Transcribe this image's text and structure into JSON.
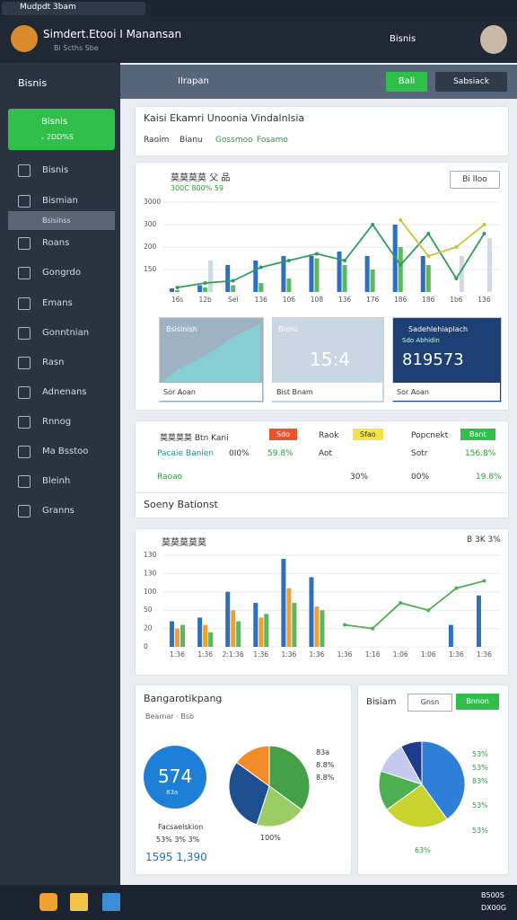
{
  "window": {
    "tab": "Mudpdt 3bam"
  },
  "header": {
    "title": "Simdert.Etooi I Manansan",
    "subtitle": "Bi Scths Sbe",
    "menu": "Bisnis"
  },
  "sidebar": {
    "menu": "Bisnis",
    "active": {
      "label": "Bisnis",
      "sub": "ᵥ 2DD%S"
    },
    "subitem": "Bsisinss",
    "items": [
      "Bisnis",
      "Bismian",
      "Roans",
      "Gongrdo",
      "Emans",
      "Gonntnian",
      "Rasn",
      "Adnenans",
      "Rnnog",
      "Ma Bsstoo",
      "Bleinh",
      "Granns"
    ]
  },
  "toolbar": {
    "title": "Ilrapan",
    "primary": "Bali",
    "secondary": "Sabsiack"
  },
  "filter_card": {
    "title": "Kaisi Ekamri Unoonia Vindalnlsia",
    "filters": [
      "Raoim",
      "Bianu",
      "Gossmoo",
      "Fosamo"
    ]
  },
  "overview": {
    "title": "莫莫莫莫 父 品",
    "subtitle": "300C 800% 59",
    "button": "Bi lloo",
    "tiles": [
      {
        "title": "Bsisinish",
        "footer": "Sor Aoan"
      },
      {
        "title": "Bisnu",
        "value": "15:4",
        "footer": "Bist Bnam"
      },
      {
        "title": "Sadehlehiaplach",
        "sub": "Sdo Abhidin",
        "value": "819573",
        "footer": "Sor Aoan"
      }
    ]
  },
  "legend_card": {
    "row1": [
      "莫莫莫莫 Btn Kani",
      "Sdo",
      "Raok",
      "Sfao",
      "Popcnekt",
      "Bant"
    ],
    "row2": [
      "Pacaie Banien",
      "0I0%",
      "59.8%",
      "Aot",
      "Sotr",
      "156.8%"
    ],
    "row3": [
      "Raoao",
      "30%",
      "00%",
      "19.8%"
    ],
    "footer": "Soeny Bationst"
  },
  "reports_card": {
    "title": "莫莫莫莫莫",
    "stat": "B 3K 3%"
  },
  "summary_card": {
    "title": "Bangarotikpang",
    "subtitle": "Bearnar · Bsb",
    "big": "574",
    "big_sub": "83a",
    "labels": [
      "83a",
      "8.8%",
      "8.8%"
    ],
    "caption": "Facsaelskion",
    "percents": "53% 3% 3%",
    "pie_note": "100%",
    "foot": "1595 1,390"
  },
  "split_card": {
    "title": "Bisiam",
    "buttons": [
      "Gnsn",
      "Bnnon"
    ],
    "labels": [
      "53%",
      "53%",
      "83%",
      "53%",
      "53%",
      "63%"
    ]
  },
  "taskbar": {
    "time": "B500S",
    "date": "DX00G"
  },
  "chart_data": [
    {
      "type": "combo",
      "categories": [
        "16s",
        "12b",
        "Sel",
        "136",
        "106",
        "108",
        "136",
        "176",
        "186",
        "186",
        "1b6",
        "136"
      ],
      "ylim": [
        0,
        400
      ],
      "yticks": [
        {
          "value": 100,
          "label": "150"
        },
        200,
        300,
        {
          "value": 400,
          "label": "3000"
        }
      ],
      "series": [
        {
          "kind": "bar",
          "color": "#2f6fbf",
          "values": [
            16,
            30,
            120,
            140,
            160,
            160,
            180,
            160,
            300,
            160,
            null,
            null
          ]
        },
        {
          "kind": "bar",
          "color": "#5cb85c",
          "values": [
            8,
            20,
            30,
            40,
            60,
            150,
            120,
            100,
            200,
            120,
            null,
            null
          ]
        },
        {
          "kind": "bar",
          "color": "#cfd8e3",
          "values": [
            null,
            140,
            null,
            null,
            null,
            null,
            null,
            null,
            null,
            null,
            160,
            240
          ]
        },
        {
          "kind": "line",
          "color": "#2e9e5a",
          "values": [
            20,
            40,
            50,
            110,
            140,
            170,
            140,
            300,
            120,
            260,
            60,
            260
          ]
        },
        {
          "kind": "line",
          "color": "#c8c43a",
          "values": [
            null,
            null,
            null,
            null,
            null,
            null,
            null,
            null,
            320,
            160,
            200,
            300
          ]
        }
      ]
    },
    {
      "type": "combo",
      "categories": [
        "1:36",
        "1:36",
        "2:1:36",
        "1:36",
        "1:36",
        "1:36",
        "1:36",
        "1:16",
        "1:06",
        "1:06",
        "1:36",
        "1:36"
      ],
      "ylim": [
        0,
        125
      ],
      "yticks": [
        0,
        {
          "value": 25,
          "label": "20"
        },
        50,
        {
          "value": 75,
          "label": "100"
        },
        {
          "value": 100,
          "label": "130"
        },
        {
          "value": 125,
          "label": "130"
        }
      ],
      "series": [
        {
          "kind": "bar",
          "color": "#2f6fbf",
          "values": [
            35,
            40,
            75,
            60,
            120,
            95,
            null,
            null,
            null,
            null,
            30,
            70
          ]
        },
        {
          "kind": "bar",
          "color": "#f0a030",
          "values": [
            25,
            30,
            50,
            40,
            80,
            55,
            null,
            null,
            null,
            null,
            null,
            null
          ]
        },
        {
          "kind": "bar",
          "color": "#5cb85c",
          "values": [
            30,
            20,
            35,
            45,
            60,
            50,
            null,
            null,
            null,
            null,
            null,
            null
          ]
        },
        {
          "kind": "line",
          "color": "#4caf50",
          "values": [
            null,
            null,
            null,
            null,
            null,
            null,
            30,
            25,
            60,
            50,
            80,
            90
          ]
        }
      ]
    },
    {
      "type": "pie",
      "values": [
        35,
        20,
        30,
        15
      ],
      "colors": [
        "#43a047",
        "#9ccc65",
        "#1e4f91",
        "#f28c28"
      ]
    },
    {
      "type": "pie",
      "values": [
        40,
        25,
        15,
        12,
        8
      ],
      "colors": [
        "#2f7ed8",
        "#c8d32e",
        "#4caf50",
        "#c5c8ef",
        "#1e3a8a"
      ]
    }
  ]
}
